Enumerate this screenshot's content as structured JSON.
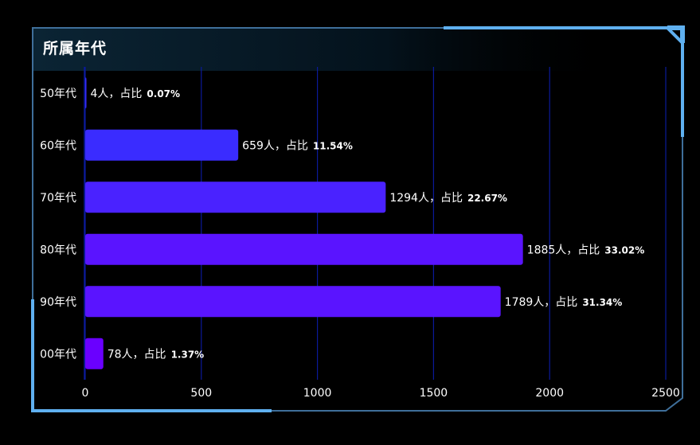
{
  "panel": {
    "title": "所属年代"
  },
  "colors": {
    "background": "#000000",
    "frame_line": "#3f6f9a",
    "frame_accent": "#5fb0f0",
    "grid_line": "#0a1a9a",
    "label_text": "#ffffff",
    "bar_gradient": [
      "#3a2cff",
      "#4a22ff",
      "#5a14ff",
      "#6a00ff"
    ]
  },
  "chart_data": {
    "type": "bar",
    "orientation": "horizontal",
    "title": "所属年代",
    "categories": [
      "50年代",
      "60年代",
      "70年代",
      "80年代",
      "90年代",
      "00年代"
    ],
    "values": [
      4,
      659,
      1294,
      1885,
      1789,
      78
    ],
    "data_labels": [
      {
        "count": "4人，占比",
        "percent": "0.07%"
      },
      {
        "count": "659人，占比",
        "percent": "11.54%"
      },
      {
        "count": "1294人，占比",
        "percent": "22.67%"
      },
      {
        "count": "1885人，占比",
        "percent": "33.02%"
      },
      {
        "count": "1789人，占比",
        "percent": "31.34%"
      },
      {
        "count": "78人，占比",
        "percent": "1.37%"
      }
    ],
    "x_ticks": [
      "0",
      "500",
      "1000",
      "1500",
      "2000",
      "2500"
    ],
    "xlim": [
      0,
      2500
    ],
    "xlabel": "",
    "ylabel": "",
    "grid": true,
    "legend": "none"
  }
}
